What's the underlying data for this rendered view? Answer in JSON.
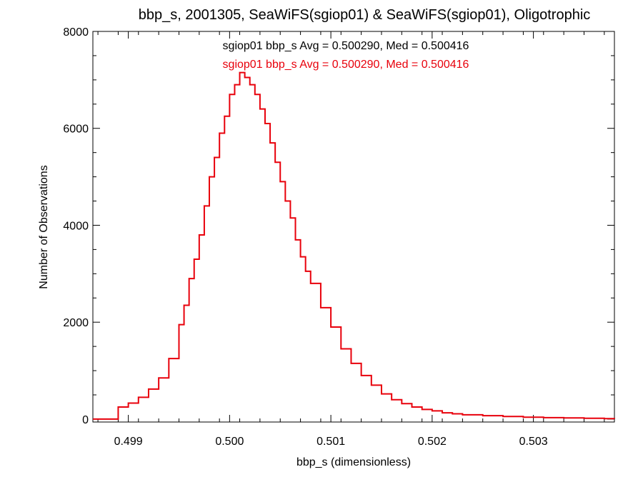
{
  "chart_data": {
    "type": "line",
    "title": "bbp_s, 2001305, SeaWiFS(sgiop01) & SeaWiFS(sgiop01), Oligotrophic",
    "xlabel": "bbp_s (dimensionless)",
    "ylabel": "Number of Observations",
    "xlim": [
      0.49865,
      0.5038
    ],
    "ylim": [
      -60,
      8000
    ],
    "x_ticks": [
      "0.499",
      "0.500",
      "0.501",
      "0.502",
      "0.503"
    ],
    "x_tick_values": [
      0.499,
      0.5,
      0.501,
      0.502,
      0.503
    ],
    "y_ticks": [
      "0",
      "2000",
      "4000",
      "6000",
      "8000"
    ],
    "y_tick_values": [
      0,
      2000,
      4000,
      6000,
      8000
    ],
    "annotations": [
      {
        "text": "sgiop01 bbp_s Avg = 0.500290, Med = 0.500416",
        "color": "#000000"
      },
      {
        "text": "sgiop01 bbp_s Avg = 0.500290, Med = 0.500416",
        "color": "#e8000b"
      }
    ],
    "series": [
      {
        "color": "#e8000b",
        "x": [
          0.49865,
          0.4988,
          0.4989,
          0.499,
          0.4991,
          0.4992,
          0.4993,
          0.4994,
          0.4995,
          0.49955,
          0.4996,
          0.49965,
          0.4997,
          0.49975,
          0.4998,
          0.49985,
          0.4999,
          0.49995,
          0.5,
          0.50005,
          0.5001,
          0.50015,
          0.5002,
          0.50025,
          0.5003,
          0.50035,
          0.5004,
          0.50045,
          0.5005,
          0.50055,
          0.5006,
          0.50065,
          0.5007,
          0.50075,
          0.5008,
          0.5009,
          0.501,
          0.5011,
          0.5012,
          0.5013,
          0.5014,
          0.5015,
          0.5016,
          0.5017,
          0.5018,
          0.5019,
          0.502,
          0.5021,
          0.5022,
          0.5023,
          0.5025,
          0.5027,
          0.5029,
          0.5031,
          0.5033,
          0.5035,
          0.5037,
          0.5038
        ],
        "values": [
          0,
          0,
          250,
          330,
          450,
          620,
          850,
          1250,
          1950,
          2350,
          2900,
          3300,
          3800,
          4400,
          5000,
          5400,
          5900,
          6250,
          6700,
          6900,
          7150,
          7050,
          6900,
          6700,
          6400,
          6100,
          5700,
          5300,
          4900,
          4500,
          4150,
          3700,
          3350,
          3050,
          2800,
          2300,
          1900,
          1450,
          1150,
          900,
          700,
          520,
          400,
          320,
          250,
          200,
          170,
          130,
          110,
          90,
          70,
          55,
          40,
          30,
          25,
          18,
          10,
          5
        ]
      }
    ]
  }
}
